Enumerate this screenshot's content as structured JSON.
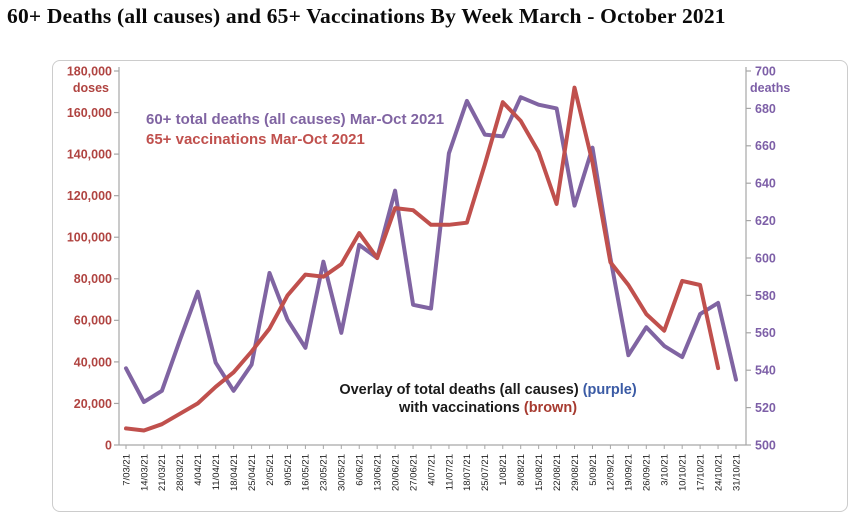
{
  "title": "60+ Deaths (all causes)  and 65+ Vaccinations By Week  March - October 2021",
  "chart_data": {
    "type": "line",
    "title": "60+ Deaths (all causes) and 65+ Vaccinations By Week March - October 2021",
    "categories": [
      "7/03/21",
      "14/03/21",
      "21/03/21",
      "28/03/21",
      "4/04/21",
      "11/04/21",
      "18/04/21",
      "25/04/21",
      "2/05/21",
      "9/05/21",
      "16/05/21",
      "23/05/21",
      "30/05/21",
      "6/06/21",
      "13/06/21",
      "20/06/21",
      "27/06/21",
      "4/07/21",
      "11/07/21",
      "18/07/21",
      "25/07/21",
      "1/08/21",
      "8/08/21",
      "15/08/21",
      "22/08/21",
      "29/08/21",
      "5/09/21",
      "12/09/21",
      "19/09/21",
      "26/09/21",
      "3/10/21",
      "10/10/21",
      "17/10/21",
      "24/10/21",
      "31/10/21"
    ],
    "series": [
      {
        "name": "60+ total deaths (all causes) Mar-Oct 2021",
        "axis": "right",
        "color": "#8064a2",
        "values": [
          541,
          523,
          529,
          556,
          582,
          544,
          529,
          543,
          592,
          567,
          552,
          598,
          560,
          607,
          600,
          636,
          575,
          573,
          656,
          684,
          666,
          665,
          686,
          682,
          680,
          628,
          659,
          600,
          548,
          563,
          553,
          547,
          570,
          576,
          535
        ]
      },
      {
        "name": "65+ vaccinations Mar-Oct 2021",
        "axis": "left",
        "color": "#c0504d",
        "values": [
          8000,
          7000,
          10000,
          15000,
          20000,
          28000,
          35000,
          45000,
          56000,
          72000,
          82000,
          81000,
          87000,
          102000,
          90000,
          114000,
          113000,
          106000,
          106000,
          107000,
          135000,
          165000,
          156000,
          141000,
          116000,
          172000,
          136000,
          88000,
          77000,
          63000,
          55000,
          79000,
          77000,
          37000,
          null
        ]
      }
    ],
    "left_axis": {
      "label": "doses",
      "min": 0,
      "max": 180000,
      "color": "#b04441",
      "ticks": [
        "180,000",
        "160,000",
        "140,000",
        "120,000",
        "100,000",
        "80,000",
        "60,000",
        "40,000",
        "20,000",
        "0"
      ]
    },
    "right_axis": {
      "label": "deaths",
      "min": 500,
      "max": 700,
      "color": "#7d5fa7",
      "ticks": [
        "700",
        "680",
        "660",
        "640",
        "620",
        "600",
        "580",
        "560",
        "540",
        "520",
        "500"
      ]
    },
    "grid": false,
    "legend_position": "inside-top-left",
    "annotation": {
      "line1": [
        {
          "text": "Overlay of total deaths (all causes) ",
          "color": "#1a1a1a"
        },
        {
          "text": "(purple)",
          "color": "#3b5ba5"
        }
      ],
      "line2": [
        {
          "text": "with vaccinations ",
          "color": "#1a1a1a"
        },
        {
          "text": "(brown)",
          "color": "#a63a2f"
        }
      ]
    }
  }
}
